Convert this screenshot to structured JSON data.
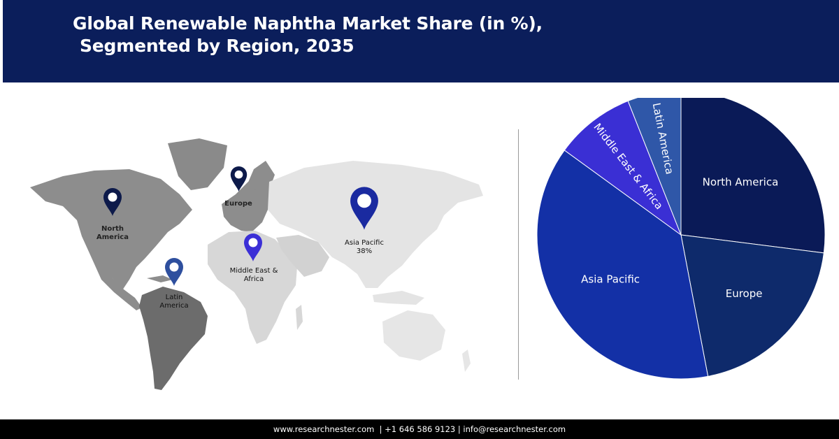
{
  "header": {
    "title_line1": "Global Renewable Naphtha Market Share (in %),",
    "title_line2": "Segmented by Region, 2035"
  },
  "map": {
    "pins": [
      {
        "id": "north-america",
        "label_lines": [
          "North",
          "America"
        ],
        "color": "#0d1a4a"
      },
      {
        "id": "europe",
        "label_lines": [
          "Europe"
        ],
        "color": "#0d1a4a"
      },
      {
        "id": "asia-pacific",
        "label_lines": [
          "Asia Pacific",
          "38%"
        ],
        "color": "#1a2aa0"
      },
      {
        "id": "middle-east-africa",
        "label_lines": [
          "Middle East &",
          "Africa"
        ],
        "color": "#3b2fd6"
      },
      {
        "id": "latin-america",
        "label_lines": [
          "Latin",
          "America"
        ],
        "color": "#2e4f9e"
      }
    ]
  },
  "chart_data": {
    "type": "pie",
    "slices": [
      {
        "label": "North America",
        "value": 27,
        "color": "#0a1a57"
      },
      {
        "label": "Europe",
        "value": 20,
        "color": "#0e2a6b"
      },
      {
        "label": "Asia Pacific",
        "value": 38,
        "color": "#1330a6"
      },
      {
        "label": "Middle East & Africa",
        "value": 9,
        "color": "#3a2fd4"
      },
      {
        "label": "Latin America",
        "value": 6,
        "color": "#2f57a8"
      }
    ],
    "start_angle_deg": 0,
    "direction": "clockwise"
  },
  "footer": {
    "text": "www.researchnester.com  | +1 646 586 9123 | info@researchnester.com"
  }
}
